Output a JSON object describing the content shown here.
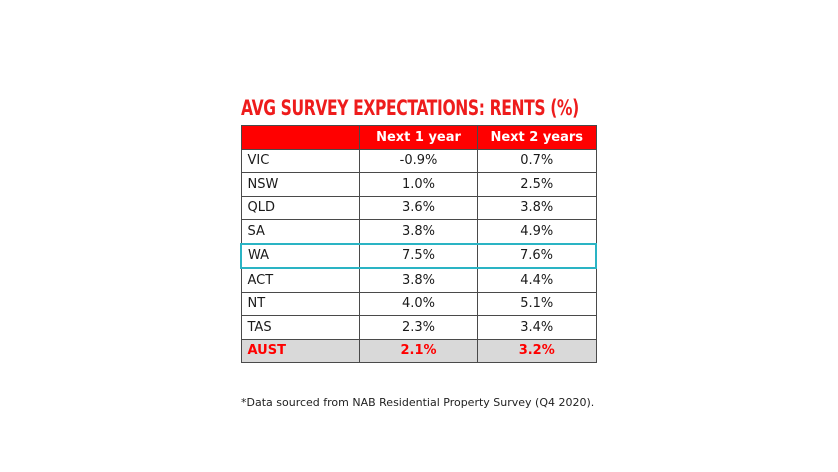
{
  "chart_data": {
    "type": "table",
    "title": "AVG SURVEY EXPECTATIONS: RENTS (%)",
    "columns": [
      "",
      "Next 1 year",
      "Next 2 years"
    ],
    "rows": [
      {
        "state": "VIC",
        "next_1_year": "-0.9%",
        "next_2_years": "0.7%"
      },
      {
        "state": "NSW",
        "next_1_year": "1.0%",
        "next_2_years": "2.5%"
      },
      {
        "state": "QLD",
        "next_1_year": "3.6%",
        "next_2_years": "3.8%"
      },
      {
        "state": "SA",
        "next_1_year": "3.8%",
        "next_2_years": "4.9%"
      },
      {
        "state": "WA",
        "next_1_year": "7.5%",
        "next_2_years": "7.6%"
      },
      {
        "state": "ACT",
        "next_1_year": "3.8%",
        "next_2_years": "4.4%"
      },
      {
        "state": "NT",
        "next_1_year": "4.0%",
        "next_2_years": "5.1%"
      },
      {
        "state": "TAS",
        "next_1_year": "2.3%",
        "next_2_years": "3.4%"
      },
      {
        "state": "AUST",
        "next_1_year": "2.1%",
        "next_2_years": "3.2%"
      }
    ],
    "highlighted_row": "WA",
    "total_row": "AUST",
    "colors": {
      "header": "#ff0000",
      "title": "#ee1c1c",
      "highlight": "#2ab4c4",
      "total_bg": "#d9d9d9",
      "total_text": "#ff0000"
    }
  },
  "footnote": "*Data sourced from NAB Residential Property Survey (Q4 2020)."
}
